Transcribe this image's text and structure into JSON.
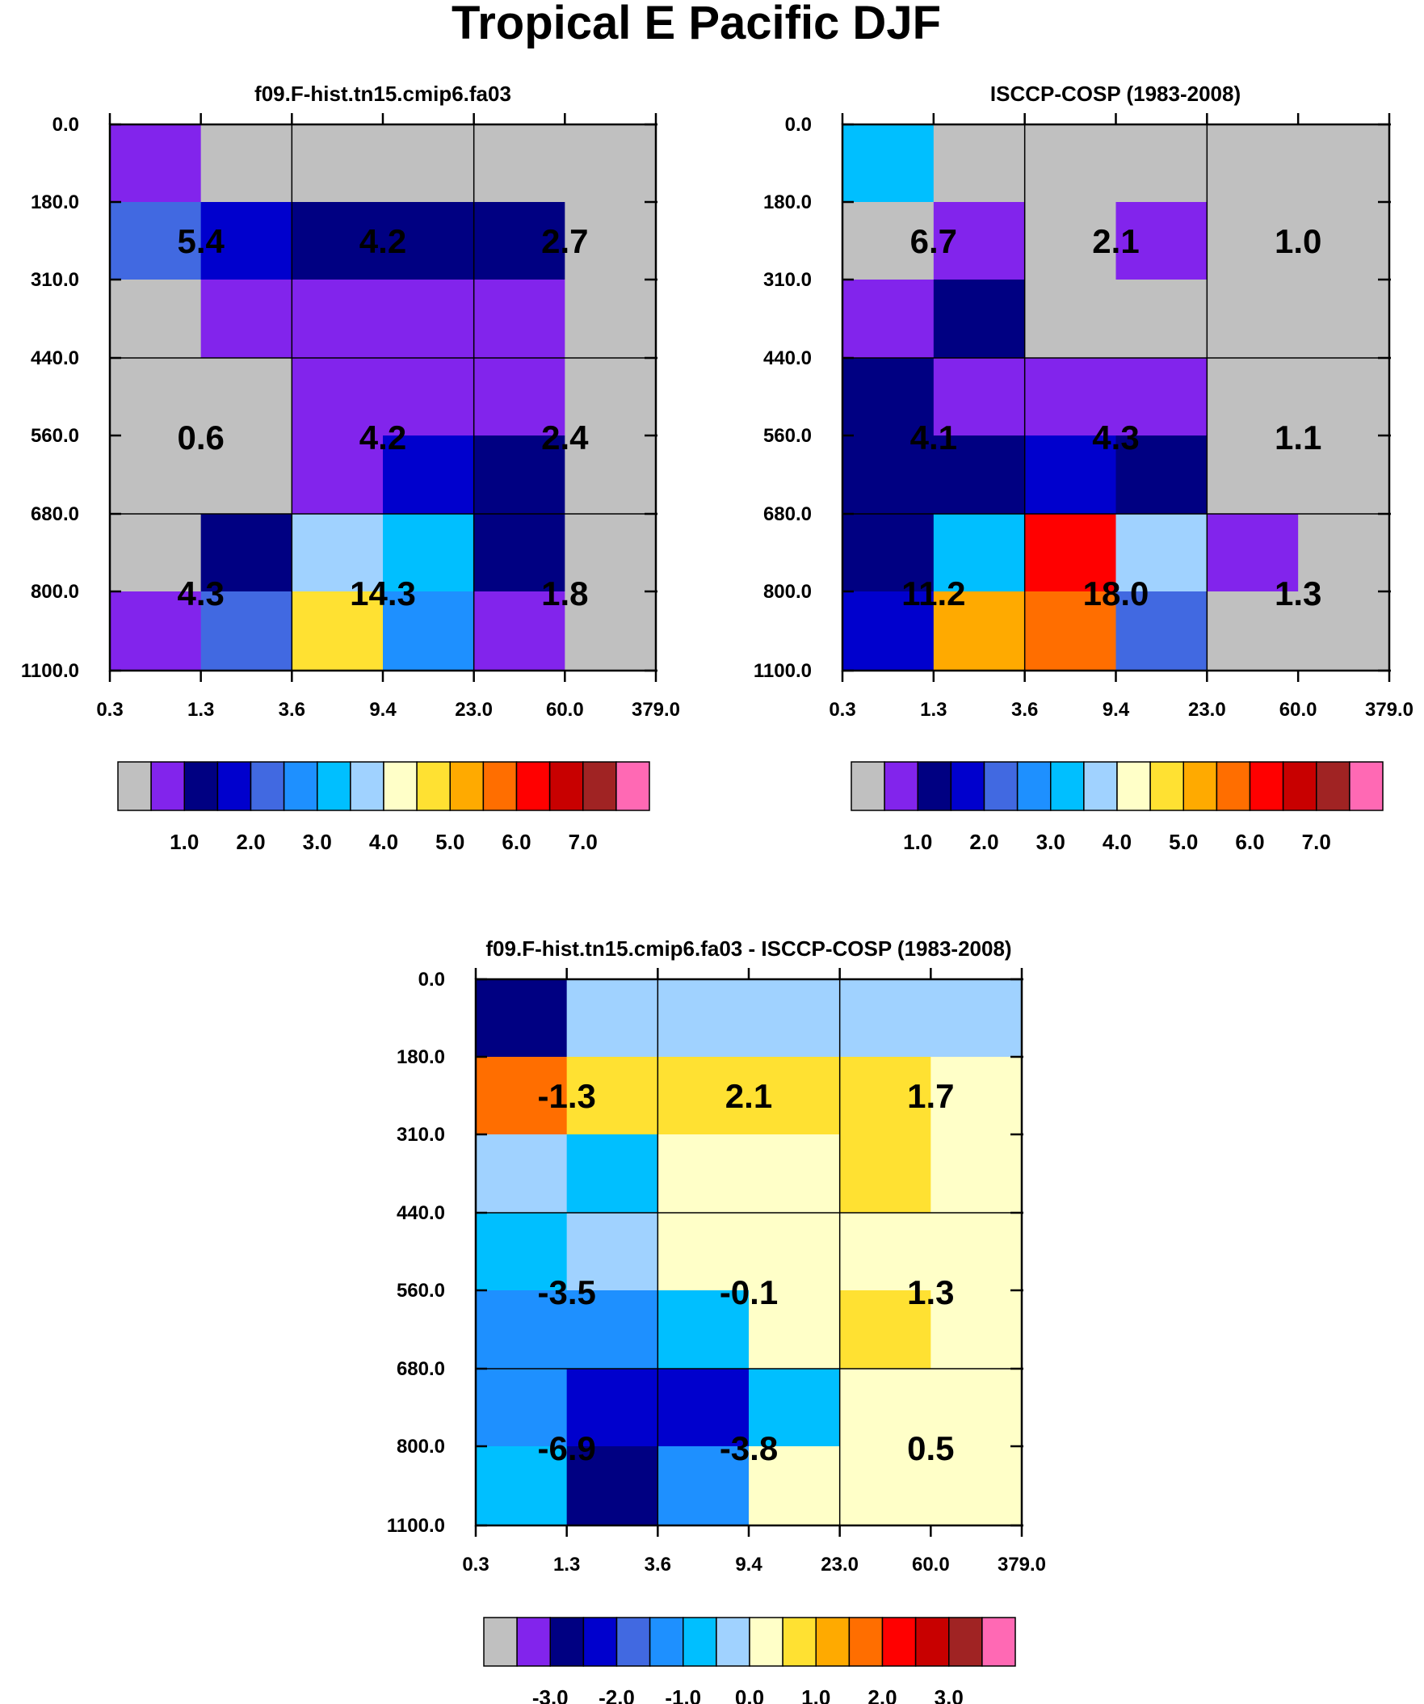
{
  "figure_title": "Tropical E Pacific DJF",
  "palette": {
    "grey": "#c0c0c0",
    "purple": "#8224ec",
    "navy": "#000082",
    "blue": "#0000cd",
    "royal": "#4169e1",
    "dodger": "#1e90ff",
    "sky": "#00bfff",
    "light": "#a0d2ff",
    "cream": "#ffffc8",
    "gold": "#ffe132",
    "orange": "#ffaa00",
    "dkorange": "#ff6e00",
    "red": "#ff0000",
    "crimson": "#c80000",
    "brown": "#a02323",
    "pink": "#ff69b4"
  },
  "chart_data": [
    {
      "type": "heatmap",
      "title": "f09.F-hist.tn15.cmip6.fa03",
      "x_ticks": [
        "0.3",
        "1.3",
        "3.6",
        "9.4",
        "23.0",
        "60.0",
        "379.0"
      ],
      "y_ticks": [
        "0.0",
        "180.0",
        "310.0",
        "440.0",
        "560.0",
        "680.0",
        "800.0",
        "1100.0"
      ],
      "colors": [
        [
          "purple",
          "grey",
          "grey",
          "grey",
          "grey",
          "grey"
        ],
        [
          "royal",
          "blue",
          "navy",
          "navy",
          "navy",
          "grey"
        ],
        [
          "grey",
          "purple",
          "purple",
          "purple",
          "purple",
          "grey"
        ],
        [
          "grey",
          "grey",
          "purple",
          "purple",
          "purple",
          "grey"
        ],
        [
          "grey",
          "grey",
          "purple",
          "blue",
          "navy",
          "grey"
        ],
        [
          "grey",
          "navy",
          "light",
          "sky",
          "navy",
          "grey"
        ],
        [
          "purple",
          "royal",
          "gold",
          "dodger",
          "purple",
          "grey"
        ]
      ],
      "summary_values": [
        [
          "5.4",
          "4.2",
          "2.7"
        ],
        [
          "0.6",
          "4.2",
          "2.4"
        ],
        [
          "4.3",
          "14.3",
          "1.8"
        ]
      ],
      "colorbar": {
        "colors": [
          "grey",
          "purple",
          "navy",
          "blue",
          "royal",
          "dodger",
          "sky",
          "light",
          "cream",
          "gold",
          "orange",
          "dkorange",
          "red",
          "crimson",
          "brown",
          "pink"
        ],
        "labels": [
          "1.0",
          "2.0",
          "3.0",
          "4.0",
          "5.0",
          "6.0",
          "7.0"
        ],
        "label_start_boundary": 2
      }
    },
    {
      "type": "heatmap",
      "title": "ISCCP-COSP (1983-2008)",
      "x_ticks": [
        "0.3",
        "1.3",
        "3.6",
        "9.4",
        "23.0",
        "60.0",
        "379.0"
      ],
      "y_ticks": [
        "0.0",
        "180.0",
        "310.0",
        "440.0",
        "560.0",
        "680.0",
        "800.0",
        "1100.0"
      ],
      "colors": [
        [
          "sky",
          "grey",
          "grey",
          "grey",
          "grey",
          "grey"
        ],
        [
          "grey",
          "purple",
          "grey",
          "purple",
          "grey",
          "grey"
        ],
        [
          "purple",
          "navy",
          "grey",
          "grey",
          "grey",
          "grey"
        ],
        [
          "navy",
          "purple",
          "purple",
          "purple",
          "grey",
          "grey"
        ],
        [
          "navy",
          "navy",
          "blue",
          "navy",
          "grey",
          "grey"
        ],
        [
          "navy",
          "sky",
          "red",
          "light",
          "purple",
          "grey"
        ],
        [
          "blue",
          "orange",
          "dkorange",
          "royal",
          "grey",
          "grey"
        ]
      ],
      "summary_values": [
        [
          "6.7",
          "2.1",
          "1.0"
        ],
        [
          "4.1",
          "4.3",
          "1.1"
        ],
        [
          "11.2",
          "18.0",
          "1.3"
        ]
      ],
      "colorbar": {
        "colors": [
          "grey",
          "purple",
          "navy",
          "blue",
          "royal",
          "dodger",
          "sky",
          "light",
          "cream",
          "gold",
          "orange",
          "dkorange",
          "red",
          "crimson",
          "brown",
          "pink"
        ],
        "labels": [
          "1.0",
          "2.0",
          "3.0",
          "4.0",
          "5.0",
          "6.0",
          "7.0"
        ],
        "label_start_boundary": 2
      }
    },
    {
      "type": "heatmap",
      "title": "f09.F-hist.tn15.cmip6.fa03 - ISCCP-COSP (1983-2008)",
      "x_ticks": [
        "0.3",
        "1.3",
        "3.6",
        "9.4",
        "23.0",
        "60.0",
        "379.0"
      ],
      "y_ticks": [
        "0.0",
        "180.0",
        "310.0",
        "440.0",
        "560.0",
        "680.0",
        "800.0",
        "1100.0"
      ],
      "colors": [
        [
          "navy",
          "light",
          "light",
          "light",
          "light",
          "light"
        ],
        [
          "dkorange",
          "gold",
          "gold",
          "gold",
          "gold",
          "cream"
        ],
        [
          "light",
          "sky",
          "cream",
          "cream",
          "gold",
          "cream"
        ],
        [
          "sky",
          "light",
          "cream",
          "cream",
          "cream",
          "cream"
        ],
        [
          "dodger",
          "dodger",
          "sky",
          "cream",
          "gold",
          "cream"
        ],
        [
          "dodger",
          "blue",
          "blue",
          "sky",
          "cream",
          "cream"
        ],
        [
          "sky",
          "navy",
          "dodger",
          "cream",
          "cream",
          "cream"
        ]
      ],
      "summary_values": [
        [
          "-1.3",
          "2.1",
          "1.7"
        ],
        [
          "-3.5",
          "-0.1",
          "1.3"
        ],
        [
          "-6.9",
          "-3.8",
          "0.5"
        ]
      ],
      "colorbar": {
        "colors": [
          "grey",
          "purple",
          "navy",
          "blue",
          "royal",
          "dodger",
          "sky",
          "light",
          "cream",
          "gold",
          "orange",
          "dkorange",
          "red",
          "crimson",
          "brown",
          "pink"
        ],
        "labels": [
          "-3.0",
          "-2.0",
          "-1.0",
          "0.0",
          "1.0",
          "2.0",
          "3.0"
        ],
        "label_start_boundary": 2
      }
    }
  ]
}
